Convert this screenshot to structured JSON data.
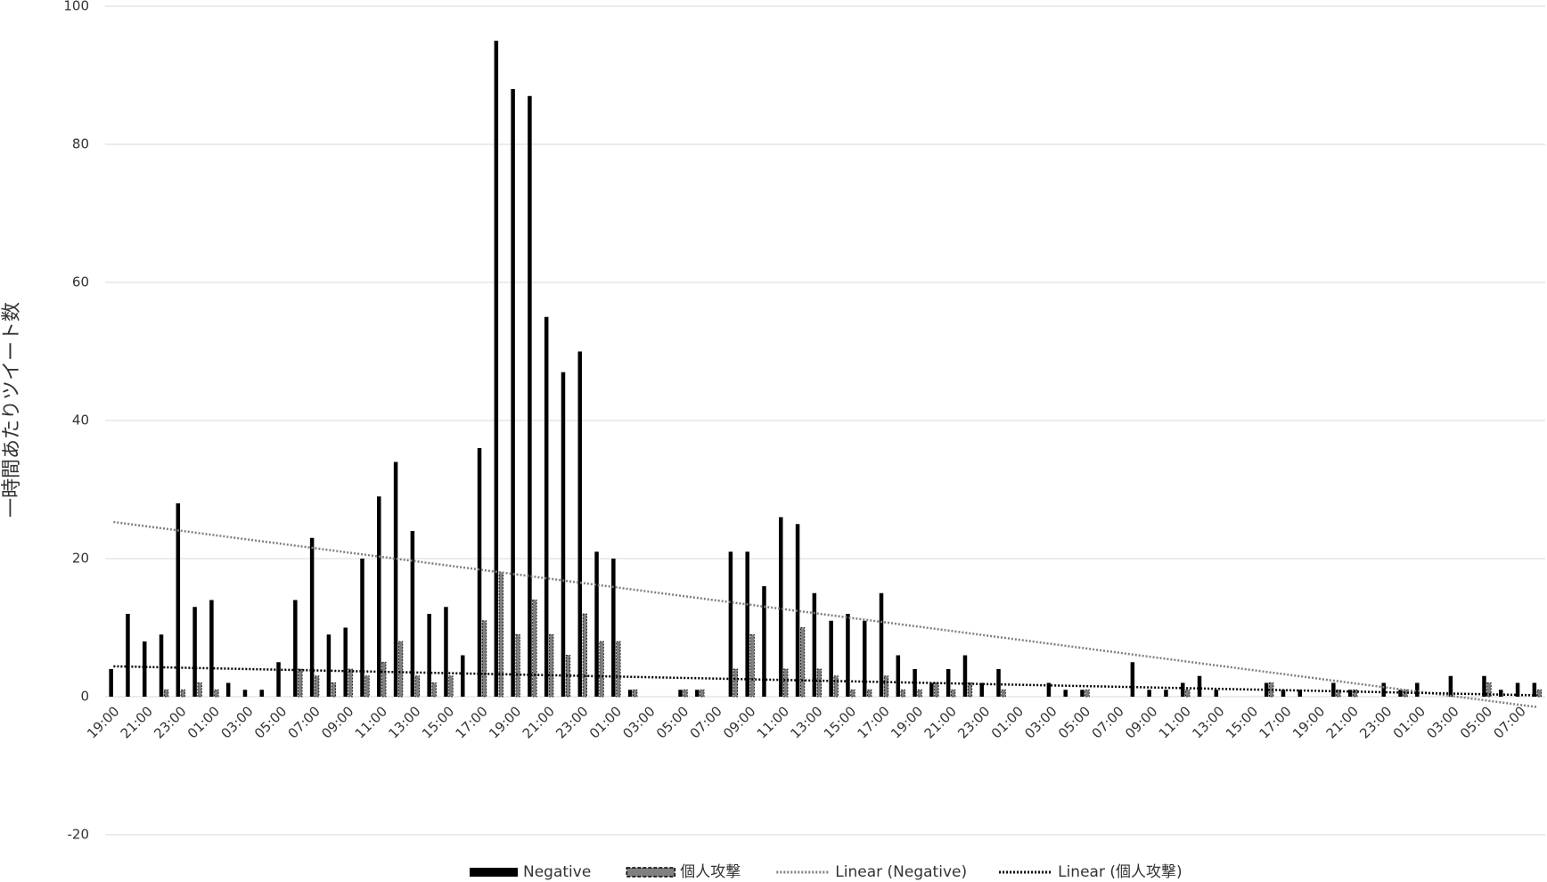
{
  "chart_data": {
    "type": "bar",
    "y_label": "一時間あたりツイート数",
    "categories": [
      "19:00",
      null,
      "21:00",
      null,
      "23:00",
      null,
      "01:00",
      null,
      "03:00",
      null,
      "05:00",
      null,
      "07:00",
      null,
      "09:00",
      null,
      "11:00",
      null,
      "13:00",
      null,
      "15:00",
      null,
      "17:00",
      null,
      "19:00",
      null,
      "21:00",
      null,
      "23:00",
      null,
      "01:00",
      null,
      "03:00",
      null,
      "05:00",
      null,
      "07:00",
      null,
      "09:00",
      null,
      "11:00",
      null,
      "13:00",
      null,
      "15:00",
      null,
      "17:00",
      null,
      "19:00",
      null,
      "21:00",
      null,
      "23:00",
      null,
      "01:00",
      null,
      "03:00",
      null,
      "05:00",
      null,
      "07:00",
      null,
      "09:00",
      null,
      "11:00",
      null,
      "13:00",
      null,
      "15:00",
      null,
      "17:00",
      null,
      "19:00",
      null,
      "21:00",
      null,
      "23:00",
      null,
      "01:00",
      null,
      "03:00",
      null,
      "05:00",
      null,
      "07:00",
      null
    ],
    "series": [
      {
        "name": "Negative",
        "color": "#000000",
        "values": [
          4,
          12,
          8,
          9,
          28,
          13,
          14,
          2,
          1,
          1,
          5,
          14,
          23,
          9,
          10,
          20,
          29,
          34,
          24,
          12,
          13,
          6,
          36,
          95,
          88,
          87,
          55,
          47,
          50,
          21,
          20,
          1,
          0,
          0,
          1,
          1,
          0,
          21,
          21,
          16,
          26,
          25,
          15,
          11,
          12,
          11,
          15,
          6,
          4,
          2,
          4,
          6,
          2,
          4,
          0,
          0,
          2,
          1,
          1,
          0,
          0,
          5,
          1,
          1,
          2,
          3,
          1,
          0,
          0,
          2,
          1,
          1,
          0,
          2,
          1,
          0,
          2,
          1,
          2,
          0,
          3,
          0,
          3,
          1,
          2,
          2
        ]
      },
      {
        "name": "個人攻撃",
        "color": "#808080",
        "values": [
          0,
          0,
          0,
          1,
          1,
          2,
          1,
          0,
          0,
          0,
          0,
          4,
          3,
          2,
          4,
          3,
          5,
          8,
          3,
          2,
          3,
          0,
          11,
          18,
          9,
          14,
          9,
          6,
          12,
          8,
          8,
          1,
          0,
          0,
          1,
          1,
          0,
          4,
          9,
          0,
          4,
          10,
          4,
          3,
          1,
          1,
          3,
          1,
          1,
          2,
          1,
          2,
          0,
          1,
          0,
          0,
          0,
          0,
          1,
          0,
          0,
          0,
          0,
          0,
          1,
          0,
          0,
          0,
          0,
          2,
          0,
          0,
          0,
          1,
          1,
          0,
          0,
          1,
          0,
          0,
          0,
          0,
          2,
          0,
          0,
          1
        ]
      }
    ],
    "trendlines": [
      {
        "name": "Linear (Negative)",
        "color": "#808080",
        "x": [
          0,
          85
        ],
        "values": [
          25.3,
          -1.5
        ]
      },
      {
        "name": "Linear (個人攻撃)",
        "color": "#000000",
        "x": [
          0,
          85
        ],
        "values": [
          4.4,
          0.2
        ]
      }
    ],
    "ylim": [
      -20,
      100
    ],
    "yticks": [
      -20,
      0,
      20,
      40,
      60,
      80,
      100
    ],
    "grid": true
  }
}
